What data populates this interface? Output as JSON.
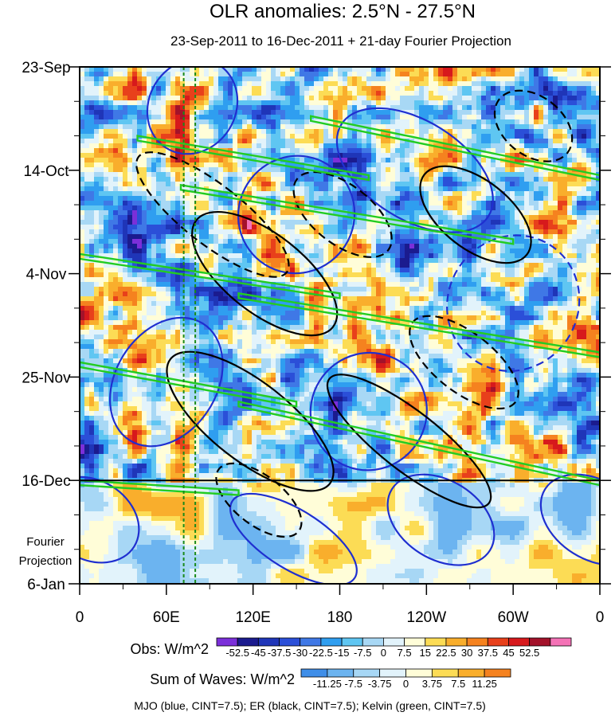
{
  "chart_data": {
    "type": "heatmap",
    "subtype": "hovmoller",
    "title": "OLR anomalies: 2.5°N - 27.5°N",
    "subtitle": "23-Sep-2011 to 16-Dec-2011 + 21-day Fourier Projection",
    "x_tick_labels": [
      "0",
      "60E",
      "120E",
      "180",
      "120W",
      "60W",
      "0"
    ],
    "x_tick_values_deg_east": [
      0,
      60,
      120,
      180,
      240,
      300,
      360
    ],
    "xlim_deg_east": [
      0,
      360
    ],
    "y_tick_labels": [
      "23-Sep",
      "14-Oct",
      "4-Nov",
      "25-Nov",
      "16-Dec",
      "6-Jan"
    ],
    "y_tick_values_days": [
      0,
      21,
      42,
      63,
      84,
      105
    ],
    "ylim_days": [
      0,
      105
    ],
    "projection_label_line1": "Fourier",
    "projection_label_line2": "Projection",
    "projection_start_day": 84,
    "reference_longitudes_deg_east": [
      72,
      80
    ],
    "obs_colorbar": {
      "label": "Obs: W/m^2",
      "levels": [
        "-52.5",
        "-45",
        "-37.5",
        "-30",
        "-22.5",
        "-15",
        "-7.5",
        "0",
        "7.5",
        "15",
        "22.5",
        "30",
        "37.5",
        "45",
        "52.5"
      ],
      "colors": [
        "#7b2fd9",
        "#1b1b8f",
        "#1f35b8",
        "#2b4fd8",
        "#3f78e6",
        "#2f9ef0",
        "#5fc6f2",
        "#a8d8f5",
        "#e2f3fb",
        "#fffdd8",
        "#fcdc55",
        "#f9ae2c",
        "#f5821f",
        "#e8401b",
        "#d7191c",
        "#a3122a",
        "#f472b6"
      ]
    },
    "waves_colorbar": {
      "label": "Sum of Waves: W/m^2",
      "levels": [
        "-11.25",
        "-7.5",
        "-3.75",
        "0",
        "3.75",
        "7.5",
        "11.25"
      ],
      "colors": [
        "#3f8ee8",
        "#6cb4f0",
        "#a7d7f5",
        "#e2f3fb",
        "#fffdd8",
        "#fcdc55",
        "#f9ae2c",
        "#f5821f"
      ]
    },
    "contour_legend": "MJO (blue, CINT=7.5); ER (black, CINT=7.5); Kelvin (green, CINT=7.5)",
    "series": [
      {
        "name": "MJO",
        "color": "#1f2fd0",
        "cint": 7.5,
        "features": [
          {
            "lon": 78,
            "day": 8,
            "rx": 30,
            "ry": 10,
            "sign": "pos"
          },
          {
            "lon": 150,
            "day": 30,
            "rx": 40,
            "ry": 12,
            "sign": "pos"
          },
          {
            "lon": 232,
            "day": 21,
            "rx": 60,
            "ry": 10,
            "sign": "pos"
          },
          {
            "lon": 300,
            "day": 48,
            "rx": 45,
            "ry": 14,
            "sign": "neg"
          },
          {
            "lon": 60,
            "day": 64,
            "rx": 35,
            "ry": 14,
            "sign": "pos"
          },
          {
            "lon": 200,
            "day": 70,
            "rx": 40,
            "ry": 12,
            "sign": "pos"
          },
          {
            "lon": 8,
            "day": 92,
            "rx": 35,
            "ry": 8,
            "sign": "pos"
          },
          {
            "lon": 148,
            "day": 96,
            "rx": 50,
            "ry": 6,
            "sign": "pos"
          },
          {
            "lon": 250,
            "day": 92,
            "rx": 40,
            "ry": 8,
            "sign": "pos"
          },
          {
            "lon": 356,
            "day": 92,
            "rx": 40,
            "ry": 8,
            "sign": "pos"
          }
        ]
      },
      {
        "name": "ER",
        "color": "#000000",
        "cint": 7.5,
        "features": [
          {
            "lon": 92,
            "day": 30,
            "rx": 65,
            "ry": 6,
            "sign": "neg"
          },
          {
            "lon": 128,
            "day": 42,
            "rx": 60,
            "ry": 8,
            "sign": "pos"
          },
          {
            "lon": 182,
            "day": 30,
            "rx": 40,
            "ry": 6,
            "sign": "neg"
          },
          {
            "lon": 274,
            "day": 30,
            "rx": 45,
            "ry": 7,
            "sign": "pos"
          },
          {
            "lon": 118,
            "day": 72,
            "rx": 70,
            "ry": 8,
            "sign": "pos"
          },
          {
            "lon": 228,
            "day": 76,
            "rx": 70,
            "ry": 6,
            "sign": "pos"
          },
          {
            "lon": 124,
            "day": 88,
            "rx": 35,
            "ry": 5,
            "sign": "neg"
          },
          {
            "lon": 266,
            "day": 60,
            "rx": 45,
            "ry": 6,
            "sign": "neg"
          },
          {
            "lon": 314,
            "day": 12,
            "rx": 30,
            "ry": 6,
            "sign": "neg"
          }
        ]
      },
      {
        "name": "Kelvin",
        "color": "#22cc22",
        "cint": 7.5,
        "features": [
          {
            "lon": 40,
            "day": 14,
            "lon2": 200,
            "day2": 22
          },
          {
            "lon": 70,
            "day": 24,
            "lon2": 300,
            "day2": 35
          },
          {
            "lon": 0,
            "day": 38,
            "lon2": 180,
            "day2": 46
          },
          {
            "lon": 110,
            "day": 46,
            "lon2": 360,
            "day2": 58
          },
          {
            "lon": 0,
            "day": 60,
            "lon2": 150,
            "day2": 68
          },
          {
            "lon": 110,
            "day": 68,
            "lon2": 360,
            "day2": 84
          },
          {
            "lon": 160,
            "day": 10,
            "lon2": 360,
            "day2": 22
          },
          {
            "lon": 0,
            "day": 84,
            "lon2": 110,
            "day2": 86
          }
        ]
      }
    ]
  }
}
